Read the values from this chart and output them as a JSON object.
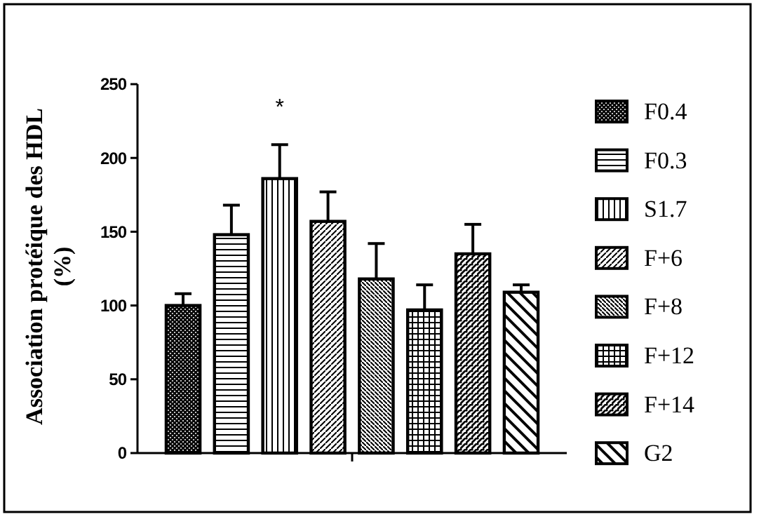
{
  "chart_data": {
    "type": "bar",
    "ylabel": "Association protéique des HDL (%)",
    "categories": [
      null
    ],
    "series": [
      {
        "name": "F0.4",
        "color": "#000000",
        "values": [
          100
        ],
        "errors": [
          [
            100,
            108
          ]
        ]
      },
      {
        "name": "F0.3",
        "color": "#000000",
        "values": [
          148
        ],
        "errors": [
          [
            148,
            168
          ]
        ]
      },
      {
        "name": "S1.7",
        "color": "#000000",
        "values": [
          186
        ],
        "errors": [
          [
            186,
            209
          ]
        ]
      },
      {
        "name": "F+6",
        "color": "#000000",
        "values": [
          157
        ],
        "errors": [
          [
            157,
            177
          ]
        ]
      },
      {
        "name": "F+8",
        "color": "#000000",
        "values": [
          118
        ],
        "errors": [
          [
            118,
            142
          ]
        ]
      },
      {
        "name": "F+12",
        "color": "#000000",
        "values": [
          97
        ],
        "errors": [
          [
            97,
            114
          ]
        ]
      },
      {
        "name": "F+14",
        "color": "#000000",
        "values": [
          135
        ],
        "errors": [
          [
            135,
            155
          ]
        ]
      },
      {
        "name": "G2",
        "color": "#000000",
        "values": [
          109
        ],
        "errors": [
          [
            109,
            114
          ]
        ]
      }
    ],
    "ylim": [
      0,
      250
    ],
    "yticks": [
      0,
      50,
      100,
      150,
      200,
      250
    ],
    "annotations": [
      "*"
    ],
    "tick_labels": "y",
    "legend": "right",
    "grid": false
  }
}
